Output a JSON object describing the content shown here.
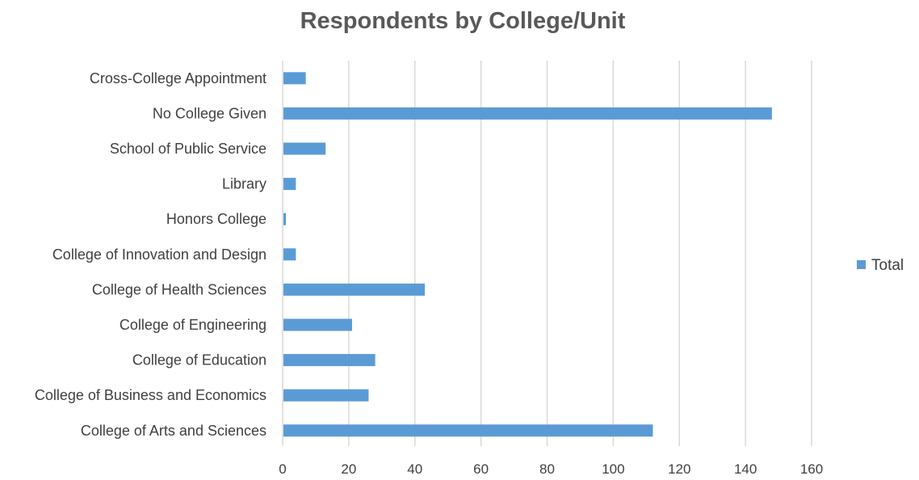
{
  "chart_data": {
    "type": "bar",
    "orientation": "horizontal",
    "title": "Respondents by College/Unit",
    "xlabel": "",
    "ylabel": "",
    "categories": [
      "College of Arts and Sciences",
      "College of Business and Economics",
      "College of Education",
      "College of Engineering",
      "College of Health Sciences",
      "College of Innovation and Design",
      "Honors College",
      "Library",
      "School of Public Service",
      "No College Given",
      "Cross-College Appointment"
    ],
    "series": [
      {
        "name": "Total",
        "color": "#5b9bd5",
        "values": [
          112,
          26,
          28,
          21,
          43,
          4,
          1,
          4,
          13,
          148,
          7
        ]
      }
    ],
    "xlim": [
      0,
      160
    ],
    "xticks": [
      0,
      20,
      40,
      60,
      80,
      100,
      120,
      140,
      160
    ],
    "grid": true,
    "legend": "right"
  }
}
